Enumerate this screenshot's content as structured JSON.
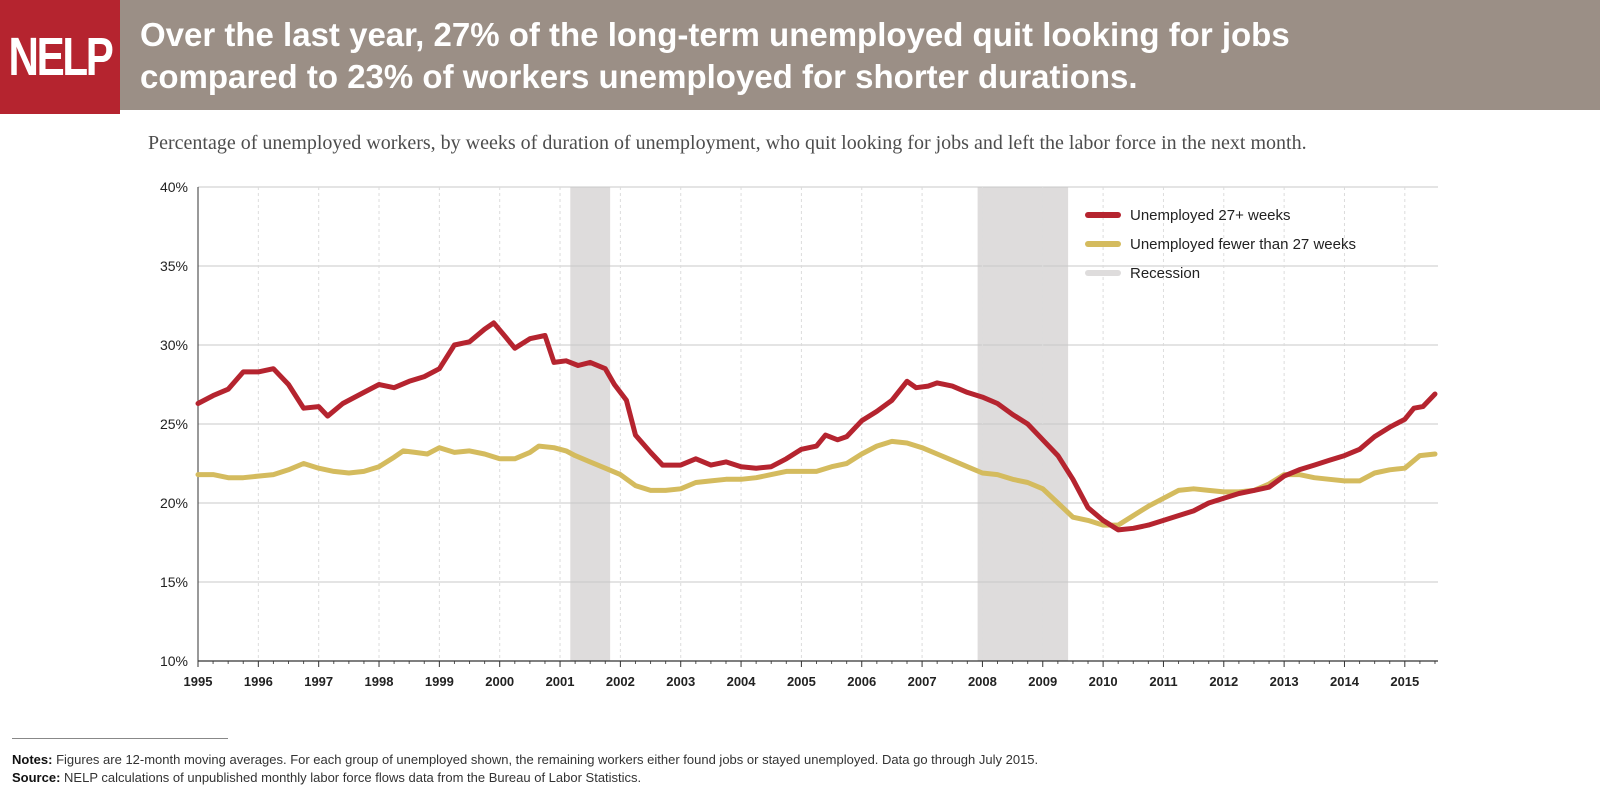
{
  "header": {
    "logo": "NELP",
    "title_line1": "Over the last year, 27% of the long-term unemployed quit looking for jobs",
    "title_line2": "compared to 23% of workers unemployed for shorter durations.",
    "brand_color": "#b5242f",
    "bar_color": "#9b8f86"
  },
  "subtitle": "Percentage of unemployed workers, by weeks of duration of unemployment, who quit looking for jobs and left the labor force in the next month.",
  "footer": {
    "notes_label": "Notes:",
    "notes_text": "Figures are 12-month moving averages. For each group of unemployed shown, the remaining workers either found jobs or stayed unemployed. Data go through July 2015.",
    "source_label": "Source:",
    "source_text": "NELP calculations of unpublished monthly labor force flows data from the Bureau of Labor Statistics."
  },
  "chart_data": {
    "type": "line",
    "xlim": [
      1995,
      2015.55
    ],
    "ylim": [
      10,
      40
    ],
    "y_ticks": [
      "10%",
      "15%",
      "20%",
      "25%",
      "30%",
      "35%",
      "40%"
    ],
    "x_ticks": [
      "1995",
      "1996",
      "1997",
      "1998",
      "1999",
      "2000",
      "2001",
      "2002",
      "2003",
      "2004",
      "2005",
      "2006",
      "2007",
      "2008",
      "2009",
      "2010",
      "2011",
      "2012",
      "2013",
      "2014",
      "2015"
    ],
    "grid": true,
    "legend_position": "top-right",
    "recessions": [
      {
        "start": 2001.17,
        "end": 2001.83
      },
      {
        "start": 2007.92,
        "end": 2009.42
      }
    ],
    "series": [
      {
        "name": "Unemployed 27+ weeks",
        "color": "#b5242f",
        "points": [
          [
            1995.0,
            26.3
          ],
          [
            1995.25,
            26.8
          ],
          [
            1995.5,
            27.2
          ],
          [
            1995.75,
            28.3
          ],
          [
            1996.0,
            28.3
          ],
          [
            1996.25,
            28.5
          ],
          [
            1996.5,
            27.5
          ],
          [
            1996.75,
            26.0
          ],
          [
            1997.0,
            26.1
          ],
          [
            1997.15,
            25.5
          ],
          [
            1997.4,
            26.3
          ],
          [
            1997.75,
            27.0
          ],
          [
            1998.0,
            27.5
          ],
          [
            1998.25,
            27.3
          ],
          [
            1998.5,
            27.7
          ],
          [
            1998.75,
            28.0
          ],
          [
            1999.0,
            28.5
          ],
          [
            1999.25,
            30.0
          ],
          [
            1999.5,
            30.2
          ],
          [
            1999.75,
            31.0
          ],
          [
            1999.9,
            31.4
          ],
          [
            2000.1,
            30.5
          ],
          [
            2000.25,
            29.8
          ],
          [
            2000.5,
            30.4
          ],
          [
            2000.75,
            30.6
          ],
          [
            2000.9,
            28.9
          ],
          [
            2001.1,
            29.0
          ],
          [
            2001.3,
            28.7
          ],
          [
            2001.5,
            28.9
          ],
          [
            2001.75,
            28.5
          ],
          [
            2001.9,
            27.5
          ],
          [
            2002.1,
            26.5
          ],
          [
            2002.25,
            24.3
          ],
          [
            2002.5,
            23.2
          ],
          [
            2002.7,
            22.4
          ],
          [
            2003.0,
            22.4
          ],
          [
            2003.25,
            22.8
          ],
          [
            2003.5,
            22.4
          ],
          [
            2003.75,
            22.6
          ],
          [
            2004.0,
            22.3
          ],
          [
            2004.25,
            22.2
          ],
          [
            2004.5,
            22.3
          ],
          [
            2004.75,
            22.8
          ],
          [
            2005.0,
            23.4
          ],
          [
            2005.25,
            23.6
          ],
          [
            2005.4,
            24.3
          ],
          [
            2005.6,
            24.0
          ],
          [
            2005.75,
            24.2
          ],
          [
            2006.0,
            25.2
          ],
          [
            2006.25,
            25.8
          ],
          [
            2006.5,
            26.5
          ],
          [
            2006.75,
            27.7
          ],
          [
            2006.9,
            27.3
          ],
          [
            2007.1,
            27.4
          ],
          [
            2007.25,
            27.6
          ],
          [
            2007.5,
            27.4
          ],
          [
            2007.75,
            27.0
          ],
          [
            2008.0,
            26.7
          ],
          [
            2008.25,
            26.3
          ],
          [
            2008.5,
            25.6
          ],
          [
            2008.75,
            25.0
          ],
          [
            2009.0,
            24.0
          ],
          [
            2009.25,
            23.0
          ],
          [
            2009.5,
            21.5
          ],
          [
            2009.75,
            19.7
          ],
          [
            2010.0,
            18.9
          ],
          [
            2010.25,
            18.3
          ],
          [
            2010.5,
            18.4
          ],
          [
            2010.75,
            18.6
          ],
          [
            2011.0,
            18.9
          ],
          [
            2011.25,
            19.2
          ],
          [
            2011.5,
            19.5
          ],
          [
            2011.75,
            20.0
          ],
          [
            2012.0,
            20.3
          ],
          [
            2012.25,
            20.6
          ],
          [
            2012.5,
            20.8
          ],
          [
            2012.75,
            21.0
          ],
          [
            2013.0,
            21.7
          ],
          [
            2013.25,
            22.1
          ],
          [
            2013.5,
            22.4
          ],
          [
            2013.75,
            22.7
          ],
          [
            2014.0,
            23.0
          ],
          [
            2014.25,
            23.4
          ],
          [
            2014.5,
            24.2
          ],
          [
            2014.75,
            24.8
          ],
          [
            2015.0,
            25.3
          ],
          [
            2015.15,
            26.0
          ],
          [
            2015.3,
            26.1
          ],
          [
            2015.5,
            26.9
          ]
        ]
      },
      {
        "name": "Unemployed fewer than 27 weeks",
        "color": "#d4bb5e",
        "points": [
          [
            1995.0,
            21.8
          ],
          [
            1995.25,
            21.8
          ],
          [
            1995.5,
            21.6
          ],
          [
            1995.75,
            21.6
          ],
          [
            1996.0,
            21.7
          ],
          [
            1996.25,
            21.8
          ],
          [
            1996.5,
            22.1
          ],
          [
            1996.75,
            22.5
          ],
          [
            1997.0,
            22.2
          ],
          [
            1997.25,
            22.0
          ],
          [
            1997.5,
            21.9
          ],
          [
            1997.75,
            22.0
          ],
          [
            1998.0,
            22.3
          ],
          [
            1998.25,
            22.9
          ],
          [
            1998.4,
            23.3
          ],
          [
            1998.6,
            23.2
          ],
          [
            1998.8,
            23.1
          ],
          [
            1999.0,
            23.5
          ],
          [
            1999.25,
            23.2
          ],
          [
            1999.5,
            23.3
          ],
          [
            1999.75,
            23.1
          ],
          [
            2000.0,
            22.8
          ],
          [
            2000.25,
            22.8
          ],
          [
            2000.5,
            23.2
          ],
          [
            2000.65,
            23.6
          ],
          [
            2000.9,
            23.5
          ],
          [
            2001.1,
            23.3
          ],
          [
            2001.25,
            23.0
          ],
          [
            2001.5,
            22.6
          ],
          [
            2001.75,
            22.2
          ],
          [
            2002.0,
            21.8
          ],
          [
            2002.25,
            21.1
          ],
          [
            2002.5,
            20.8
          ],
          [
            2002.75,
            20.8
          ],
          [
            2003.0,
            20.9
          ],
          [
            2003.25,
            21.3
          ],
          [
            2003.5,
            21.4
          ],
          [
            2003.75,
            21.5
          ],
          [
            2004.0,
            21.5
          ],
          [
            2004.25,
            21.6
          ],
          [
            2004.5,
            21.8
          ],
          [
            2004.75,
            22.0
          ],
          [
            2005.0,
            22.0
          ],
          [
            2005.25,
            22.0
          ],
          [
            2005.5,
            22.3
          ],
          [
            2005.75,
            22.5
          ],
          [
            2006.0,
            23.1
          ],
          [
            2006.25,
            23.6
          ],
          [
            2006.5,
            23.9
          ],
          [
            2006.75,
            23.8
          ],
          [
            2007.0,
            23.5
          ],
          [
            2007.25,
            23.1
          ],
          [
            2007.5,
            22.7
          ],
          [
            2007.75,
            22.3
          ],
          [
            2008.0,
            21.9
          ],
          [
            2008.25,
            21.8
          ],
          [
            2008.5,
            21.5
          ],
          [
            2008.75,
            21.3
          ],
          [
            2009.0,
            20.9
          ],
          [
            2009.25,
            20.0
          ],
          [
            2009.5,
            19.1
          ],
          [
            2009.75,
            18.9
          ],
          [
            2010.0,
            18.6
          ],
          [
            2010.25,
            18.6
          ],
          [
            2010.5,
            19.2
          ],
          [
            2010.75,
            19.8
          ],
          [
            2011.0,
            20.3
          ],
          [
            2011.25,
            20.8
          ],
          [
            2011.5,
            20.9
          ],
          [
            2011.75,
            20.8
          ],
          [
            2012.0,
            20.7
          ],
          [
            2012.25,
            20.7
          ],
          [
            2012.5,
            20.8
          ],
          [
            2012.75,
            21.2
          ],
          [
            2013.0,
            21.8
          ],
          [
            2013.25,
            21.8
          ],
          [
            2013.5,
            21.6
          ],
          [
            2013.75,
            21.5
          ],
          [
            2014.0,
            21.4
          ],
          [
            2014.25,
            21.4
          ],
          [
            2014.5,
            21.9
          ],
          [
            2014.75,
            22.1
          ],
          [
            2015.0,
            22.2
          ],
          [
            2015.25,
            23.0
          ],
          [
            2015.5,
            23.1
          ]
        ]
      }
    ],
    "legend": [
      {
        "label": "Unemployed 27+ weeks",
        "color": "#b5242f"
      },
      {
        "label": "Unemployed fewer than 27 weeks",
        "color": "#d4bb5e"
      },
      {
        "label": "Recession",
        "color": "#dedcdc"
      }
    ]
  }
}
